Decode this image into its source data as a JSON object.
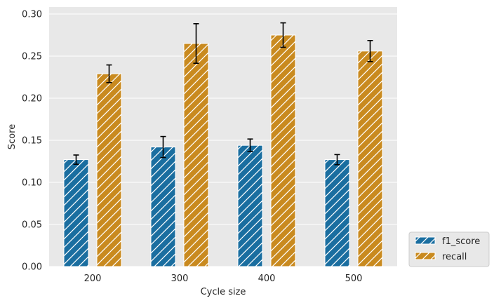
{
  "chart_data": {
    "type": "bar",
    "xlabel": "Cycle size",
    "ylabel": "Score",
    "categories": [
      "200",
      "300",
      "400",
      "500"
    ],
    "ylim": [
      0,
      0.3
    ],
    "yticks": [
      "0.00",
      "0.05",
      "0.10",
      "0.15",
      "0.20",
      "0.25",
      "0.30"
    ],
    "grid": true,
    "legend_position": "outside-bottom-right",
    "series": [
      {
        "name": "f1_score",
        "color": "#1a6ea0",
        "values": [
          0.127,
          0.142,
          0.144,
          0.127
        ],
        "error": [
          0.0055,
          0.0125,
          0.0075,
          0.006
        ]
      },
      {
        "name": "recall",
        "color": "#c98a1f",
        "values": [
          0.229,
          0.265,
          0.275,
          0.256
        ],
        "error": [
          0.0105,
          0.0235,
          0.0145,
          0.0125
        ]
      }
    ]
  }
}
